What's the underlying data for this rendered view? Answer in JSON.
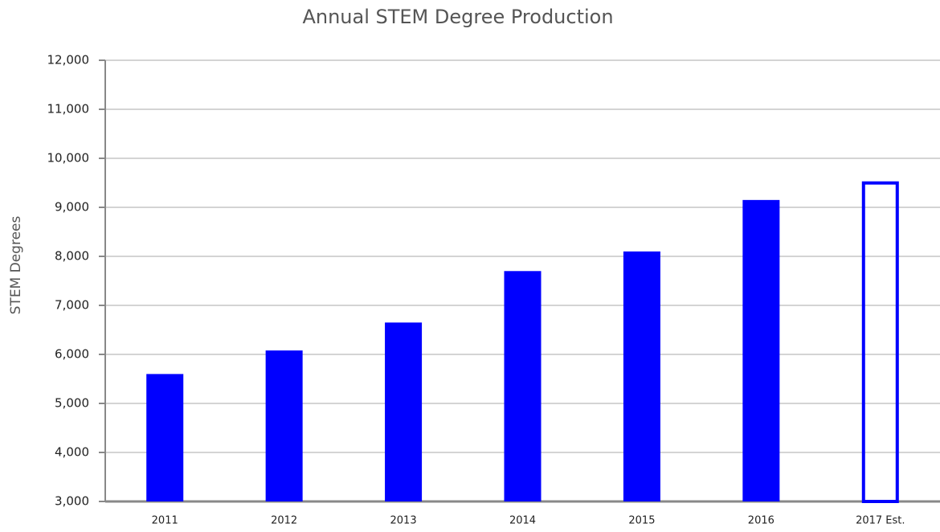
{
  "chart_data": {
    "type": "bar",
    "title": "Annual STEM Degree Production",
    "ylabel": "STEM Degrees",
    "categories": [
      "2011",
      "2012",
      "2013",
      "2014",
      "2015",
      "2016",
      "2017 Est."
    ],
    "values": [
      5600,
      6080,
      6650,
      7700,
      8100,
      9150,
      9530
    ],
    "hollow": [
      false,
      false,
      false,
      false,
      false,
      false,
      true
    ],
    "color": "#0000ff",
    "ylim": [
      3000,
      12000
    ],
    "yticks": [
      {
        "value": 3000,
        "label": "3,000"
      },
      {
        "value": 4000,
        "label": "4,000"
      },
      {
        "value": 5000,
        "label": "5,000"
      },
      {
        "value": 6000,
        "label": "6,000"
      },
      {
        "value": 7000,
        "label": "7,000"
      },
      {
        "value": 8000,
        "label": "8,000"
      },
      {
        "value": 9000,
        "label": "9,000"
      },
      {
        "value": 10000,
        "label": "10,000"
      },
      {
        "value": 11000,
        "label": "11,000"
      },
      {
        "value": 12000,
        "label": "12,000"
      }
    ],
    "grid": true
  }
}
